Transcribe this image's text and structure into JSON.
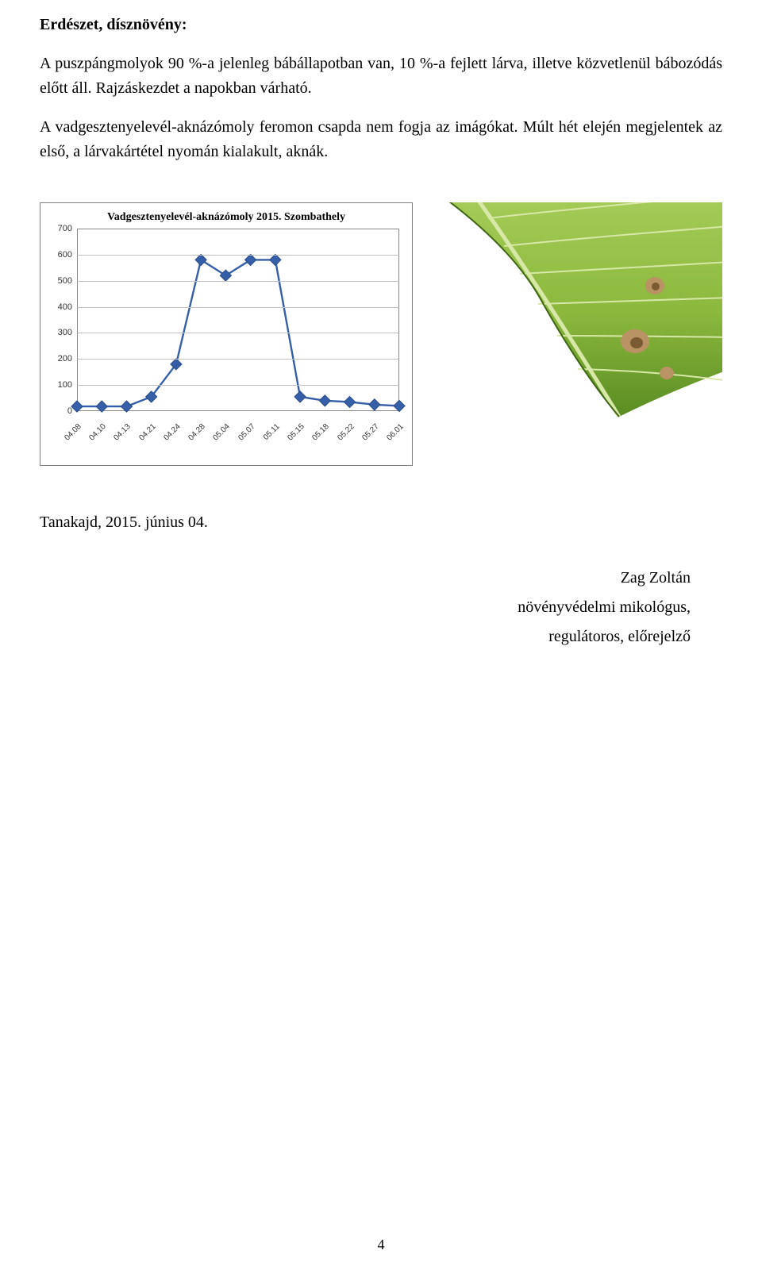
{
  "heading": "Erdészet, dísznövény:",
  "paragraphs": [
    "A puszpángmolyok 90 %-a jelenleg bábállapotban van, 10 %-a fejlett lárva, illetve közvetlenül bábozódás előtt áll. Rajzáskezdet a napokban várható.",
    "A vadgesztenyelevél-aknázómoly feromon csapda nem fogja az imágókat. Múlt hét elején megjelentek az első, a lárvakártétel nyomán kialakult, aknák."
  ],
  "chart": {
    "type": "line",
    "title": "Vadgesztenyelevél-aknázómoly 2015. Szombathely",
    "title_fontsize": 14,
    "ylim": [
      0,
      700
    ],
    "ytick_step": 100,
    "x_categories": [
      "04.08",
      "04.10",
      "04.13",
      "04.21",
      "04.24",
      "04.28",
      "05.04",
      "05.07",
      "05.11",
      "05.15",
      "05.18",
      "05.22",
      "05.27",
      "06.01"
    ],
    "values": [
      18,
      18,
      18,
      55,
      180,
      580,
      520,
      580,
      580,
      55,
      40,
      35,
      25,
      20
    ],
    "line_color": "#355fa8",
    "marker_fill": "#355fa8",
    "marker_stroke": "#2a4c86",
    "marker_size": 5,
    "line_width": 2.4,
    "background_color": "#ffffff",
    "grid_color": "#c0c0c0",
    "axis_color": "#888888",
    "label_color": "#333333",
    "label_fontsize": 11,
    "x_label_fontsize": 10
  },
  "leaf": {
    "background": "#ffffff",
    "leaf_fill": "#8bb83d",
    "leaf_fill_light": "#a7cd5a",
    "leaf_fill_dark": "#5a8c22",
    "vein_color": "#d7e8a7",
    "spot_color": "#b99363",
    "spot_dark": "#7a5a30"
  },
  "footer": {
    "location_date": "Tanakajd, 2015. június 04.",
    "name": "Zag Zoltán",
    "role1": "növényvédelmi mikológus,",
    "role2": "regulátoros, előrejelző"
  },
  "page_number": "4"
}
